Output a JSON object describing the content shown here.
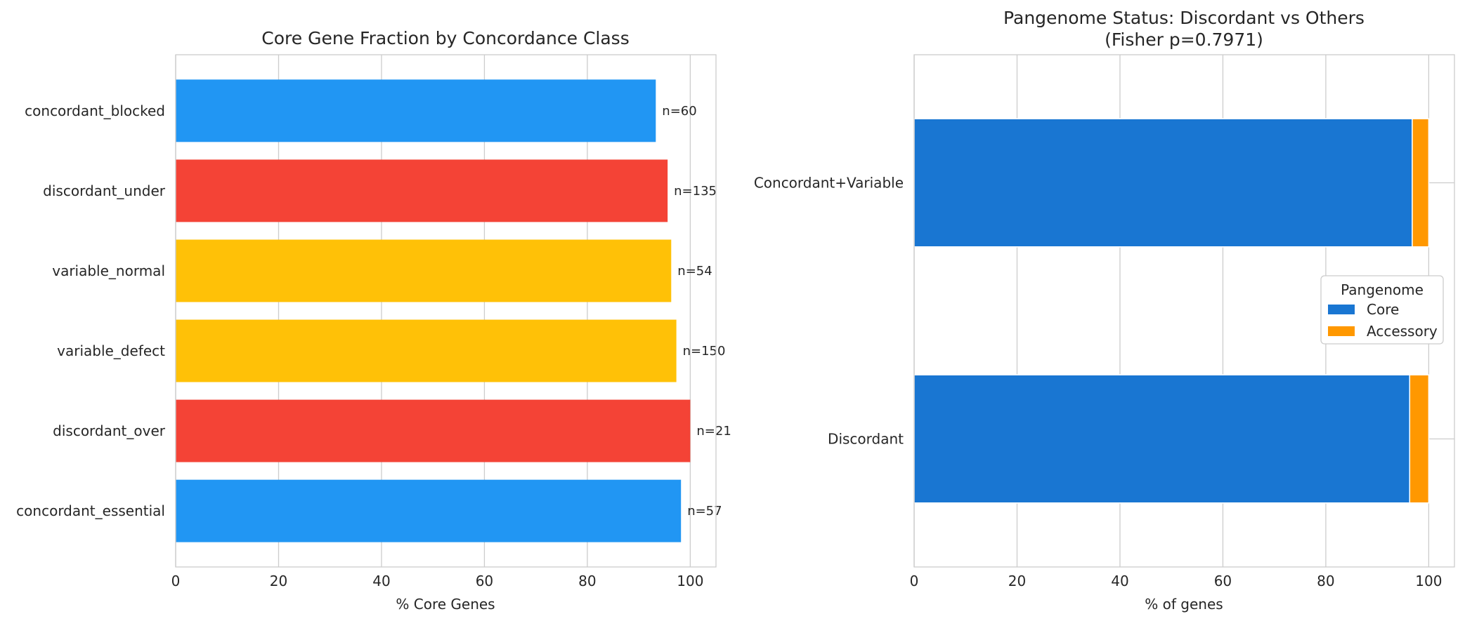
{
  "chart_data": [
    {
      "type": "bar",
      "orientation": "horizontal",
      "title": "Core Gene Fraction by Concordance Class",
      "xlabel": "% Core Genes",
      "ylabel": "",
      "xlim": [
        0,
        105
      ],
      "xticks": [
        "0",
        "20",
        "40",
        "60",
        "80",
        "100"
      ],
      "grid": true,
      "categories": [
        "concordant_blocked",
        "discordant_under",
        "variable_normal",
        "variable_defect",
        "discordant_over",
        "concordant_essential"
      ],
      "values": [
        93.3,
        95.6,
        96.3,
        97.3,
        100.0,
        98.2
      ],
      "annotations": [
        "n=60",
        "n=135",
        "n=54",
        "n=150",
        "n=21",
        "n=57"
      ],
      "colors": [
        "#2196F3",
        "#F44336",
        "#FFC107",
        "#FFC107",
        "#F44336",
        "#2196F3"
      ]
    },
    {
      "type": "bar",
      "orientation": "horizontal",
      "stacked": true,
      "title": "Pangenome Status: Discordant vs Others",
      "subtitle": "(Fisher p=0.7971)",
      "xlabel": "% of genes",
      "ylabel": "",
      "xlim": [
        0,
        105
      ],
      "xticks": [
        "0",
        "20",
        "40",
        "60",
        "80",
        "100"
      ],
      "grid": true,
      "categories": [
        "Concordant+Variable",
        "Discordant"
      ],
      "series": [
        {
          "name": "Core",
          "values": [
            96.8,
            96.3
          ],
          "color": "#1976D2"
        },
        {
          "name": "Accessory",
          "values": [
            3.2,
            3.7
          ],
          "color": "#FF9800"
        }
      ],
      "legend_title": "Pangenome",
      "legend_position": "center-right"
    }
  ]
}
